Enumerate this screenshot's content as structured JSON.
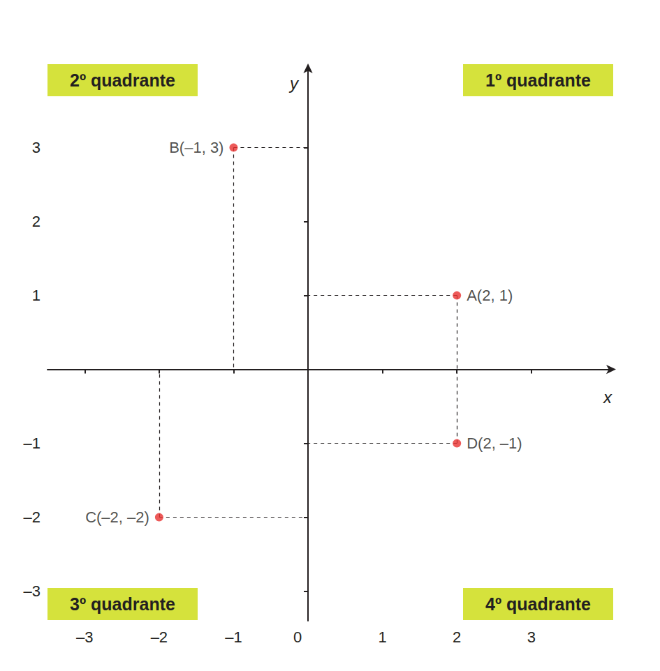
{
  "chart_data": {
    "type": "scatter",
    "x_label": "x",
    "y_label": "y",
    "x": [
      2,
      -1,
      -2,
      2
    ],
    "y": [
      1,
      3,
      -2,
      -1
    ],
    "point_labels": [
      "A(2, 1)",
      "B(–1, 3)",
      "C(–2, –2)",
      "D(2, –1)"
    ],
    "color": "#e8312f",
    "marker": "circle",
    "line_style": "dashed",
    "xlim": [
      -3.5,
      4.1
    ],
    "ylim": [
      -3.4,
      4.1
    ],
    "xticks": [
      {
        "value": -3,
        "label": "–3"
      },
      {
        "value": -2,
        "label": "–2"
      },
      {
        "value": -1,
        "label": "–1"
      },
      0,
      1,
      2,
      3
    ],
    "yticks": [
      {
        "value": -3,
        "label": "–3"
      },
      {
        "value": -2,
        "label": "–2"
      },
      {
        "value": -1,
        "label": "–1"
      },
      1,
      2,
      3
    ],
    "grid": false,
    "quadrant_labels": [
      "1º quadrante",
      "2º quadrante",
      "3º quadrante",
      "4º quadrante"
    ]
  }
}
